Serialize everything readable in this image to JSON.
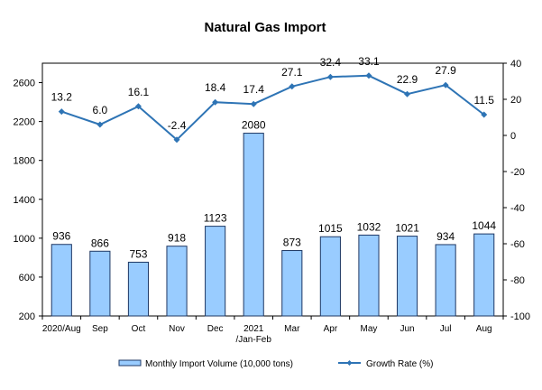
{
  "chart_data": {
    "type": "bar",
    "title": "Natural Gas Import",
    "categories": [
      "2020/Aug",
      "Sep",
      "Oct",
      "Nov",
      "Dec",
      "2021\n/Jan-Feb",
      "Mar",
      "Apr",
      "May",
      "Jun",
      "Jul",
      "Aug"
    ],
    "series": [
      {
        "name": "Monthly Import Volume (10,000 tons)",
        "type": "bar",
        "axis": "left",
        "values": [
          936,
          866,
          753,
          918,
          1123,
          2080,
          873,
          1015,
          1032,
          1021,
          934,
          1044
        ]
      },
      {
        "name": "Growth Rate (%)",
        "type": "line",
        "axis": "right",
        "values": [
          13.2,
          6.0,
          16.1,
          -2.4,
          18.4,
          17.4,
          27.1,
          32.4,
          33.1,
          22.9,
          27.9,
          11.5
        ]
      }
    ],
    "left_axis": {
      "min": 200,
      "max": 2800,
      "ticks": [
        200,
        600,
        1000,
        1400,
        1800,
        2200,
        2600
      ]
    },
    "right_axis": {
      "min": -100,
      "max": 40,
      "ticks": [
        -100,
        -80,
        -60,
        -40,
        -20,
        0,
        20,
        40
      ]
    },
    "legend_position": "bottom",
    "grid": false,
    "colors": {
      "bar_fill": "#99CCFF",
      "bar_stroke": "#1F3864",
      "line": "#2E74B5"
    }
  }
}
